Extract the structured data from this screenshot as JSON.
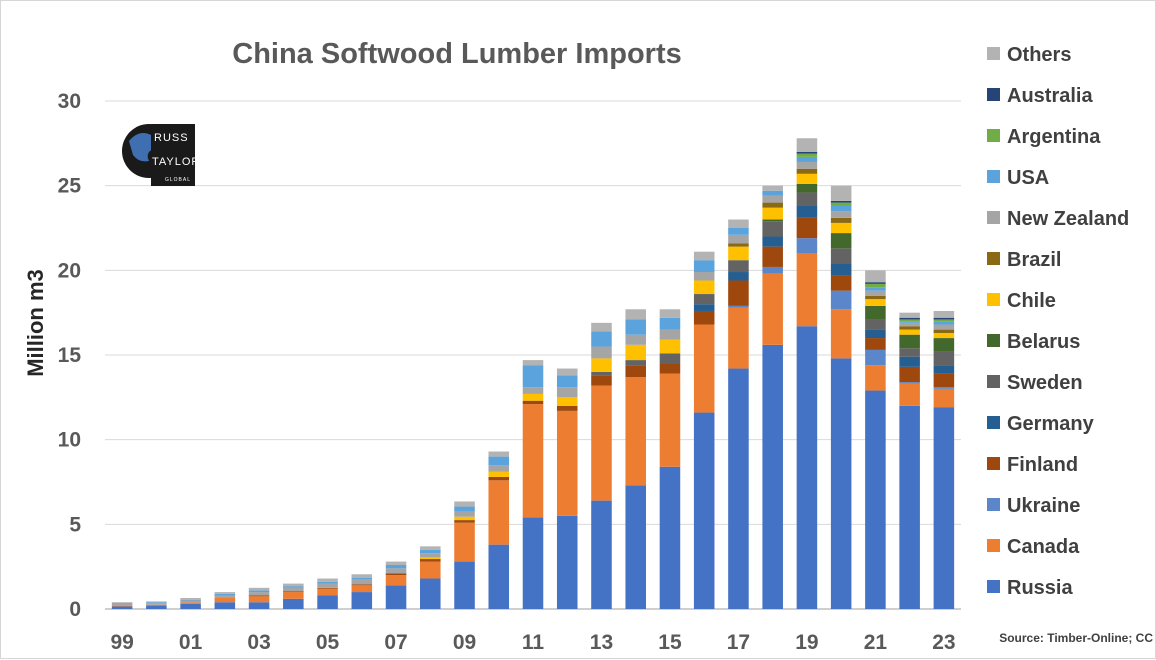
{
  "chart_data": {
    "type": "bar",
    "stacked": true,
    "title": "China Softwood Lumber Imports",
    "ylabel": "Million m3",
    "xlabel": "",
    "ylim": [
      0,
      30
    ],
    "yticks": [
      "0",
      "5",
      "10",
      "15",
      "20",
      "25",
      "30"
    ],
    "grid": true,
    "legend_position": "right",
    "source_note": "Source: Timber-Online; CC",
    "logo": {
      "line1": "RUSS",
      "line2": "TAYLOR",
      "line3": "GLOBAL"
    },
    "categories": [
      "1999",
      "2000",
      "2001",
      "2002",
      "2003",
      "2004",
      "2005",
      "2006",
      "2007",
      "2008",
      "2009",
      "2010",
      "2011",
      "2012",
      "2013",
      "2014",
      "2015",
      "2016",
      "2017",
      "2018",
      "2019",
      "2020",
      "2021",
      "2022",
      "2023"
    ],
    "xtick_labels": [
      "99",
      "",
      "01",
      "",
      "03",
      "",
      "05",
      "",
      "07",
      "",
      "09",
      "",
      "11",
      "",
      "13",
      "",
      "15",
      "",
      "17",
      "",
      "19",
      "",
      "21",
      "",
      "23"
    ],
    "series": [
      {
        "name": "Russia",
        "color": "#4472C4",
        "values": [
          0.15,
          0.2,
          0.3,
          0.4,
          0.4,
          0.6,
          0.8,
          1.0,
          1.4,
          1.8,
          2.8,
          3.8,
          5.4,
          5.5,
          6.4,
          7.3,
          8.4,
          11.6,
          14.2,
          15.6,
          16.7,
          14.8,
          12.9,
          12.0,
          11.9
        ]
      },
      {
        "name": "Canada",
        "color": "#ED7D31",
        "values": [
          0.05,
          0.05,
          0.1,
          0.25,
          0.35,
          0.4,
          0.4,
          0.4,
          0.6,
          1.0,
          2.3,
          3.8,
          6.7,
          6.2,
          6.8,
          6.4,
          5.5,
          5.2,
          3.6,
          4.2,
          4.3,
          2.9,
          1.5,
          1.3,
          1.1
        ]
      },
      {
        "name": "Ukraine",
        "color": "#5B86C9",
        "values": [
          0,
          0,
          0,
          0,
          0,
          0,
          0,
          0,
          0,
          0,
          0,
          0,
          0,
          0,
          0,
          0,
          0,
          0,
          0.1,
          0.4,
          0.9,
          1.1,
          0.9,
          0.1,
          0.1
        ]
      },
      {
        "name": "Finland",
        "color": "#9E480E",
        "values": [
          0,
          0,
          0,
          0,
          0.05,
          0.05,
          0.05,
          0.05,
          0.1,
          0.15,
          0.15,
          0.2,
          0.2,
          0.3,
          0.6,
          0.7,
          0.6,
          0.8,
          1.5,
          1.2,
          1.2,
          0.9,
          0.7,
          0.9,
          0.8
        ]
      },
      {
        "name": "Germany",
        "color": "#255E91",
        "values": [
          0,
          0,
          0,
          0,
          0,
          0,
          0,
          0,
          0,
          0,
          0,
          0,
          0,
          0,
          0,
          0,
          0,
          0.4,
          0.5,
          0.6,
          0.7,
          0.7,
          0.5,
          0.6,
          0.5
        ]
      },
      {
        "name": "Sweden",
        "color": "#636363",
        "values": [
          0,
          0,
          0,
          0,
          0,
          0,
          0,
          0,
          0,
          0,
          0,
          0,
          0,
          0,
          0.2,
          0.3,
          0.6,
          0.6,
          0.7,
          0.9,
          0.8,
          0.9,
          0.6,
          0.5,
          0.8
        ]
      },
      {
        "name": "Belarus",
        "color": "#43682B",
        "values": [
          0,
          0,
          0,
          0,
          0,
          0,
          0,
          0,
          0,
          0,
          0,
          0,
          0,
          0,
          0,
          0,
          0,
          0,
          0,
          0.1,
          0.5,
          0.9,
          0.8,
          0.8,
          0.8
        ]
      },
      {
        "name": "Chile",
        "color": "#FFC000",
        "values": [
          0,
          0,
          0,
          0,
          0,
          0,
          0,
          0,
          0,
          0.1,
          0.2,
          0.3,
          0.4,
          0.5,
          0.8,
          0.9,
          0.8,
          0.8,
          0.8,
          0.7,
          0.6,
          0.6,
          0.4,
          0.3,
          0.3
        ]
      },
      {
        "name": "Brazil",
        "color": "#8B6914",
        "values": [
          0,
          0,
          0,
          0,
          0,
          0,
          0,
          0,
          0,
          0,
          0,
          0,
          0,
          0,
          0,
          0,
          0,
          0,
          0.2,
          0.3,
          0.3,
          0.3,
          0.2,
          0.2,
          0.2
        ]
      },
      {
        "name": "New Zealand",
        "color": "#A5A5A5",
        "values": [
          0.1,
          0.1,
          0.1,
          0.15,
          0.2,
          0.2,
          0.25,
          0.3,
          0.3,
          0.25,
          0.3,
          0.4,
          0.4,
          0.6,
          0.7,
          0.6,
          0.6,
          0.5,
          0.5,
          0.4,
          0.4,
          0.4,
          0.3,
          0.2,
          0.3
        ]
      },
      {
        "name": "USA",
        "color": "#5BA3DC",
        "values": [
          0.05,
          0.05,
          0.05,
          0.1,
          0.1,
          0.1,
          0.1,
          0.1,
          0.2,
          0.2,
          0.3,
          0.5,
          1.3,
          0.7,
          0.9,
          0.9,
          0.7,
          0.7,
          0.4,
          0.3,
          0.3,
          0.3,
          0.2,
          0.1,
          0.2
        ]
      },
      {
        "name": "Argentina",
        "color": "#70AD47",
        "values": [
          0,
          0,
          0,
          0,
          0,
          0,
          0,
          0,
          0,
          0,
          0,
          0,
          0,
          0,
          0,
          0,
          0,
          0,
          0,
          0,
          0.2,
          0.2,
          0.2,
          0.1,
          0.1
        ]
      },
      {
        "name": "Australia",
        "color": "#264478",
        "values": [
          0,
          0,
          0,
          0,
          0,
          0,
          0,
          0,
          0,
          0,
          0,
          0,
          0,
          0,
          0,
          0,
          0,
          0,
          0,
          0,
          0.1,
          0.1,
          0.1,
          0.1,
          0.1
        ]
      },
      {
        "name": "Others",
        "color": "#B3B3B3",
        "values": [
          0.05,
          0.05,
          0.1,
          0.1,
          0.15,
          0.15,
          0.2,
          0.2,
          0.2,
          0.2,
          0.3,
          0.3,
          0.3,
          0.4,
          0.5,
          0.6,
          0.5,
          0.5,
          0.5,
          0.3,
          0.8,
          0.9,
          0.7,
          0.3,
          0.4
        ]
      }
    ]
  }
}
